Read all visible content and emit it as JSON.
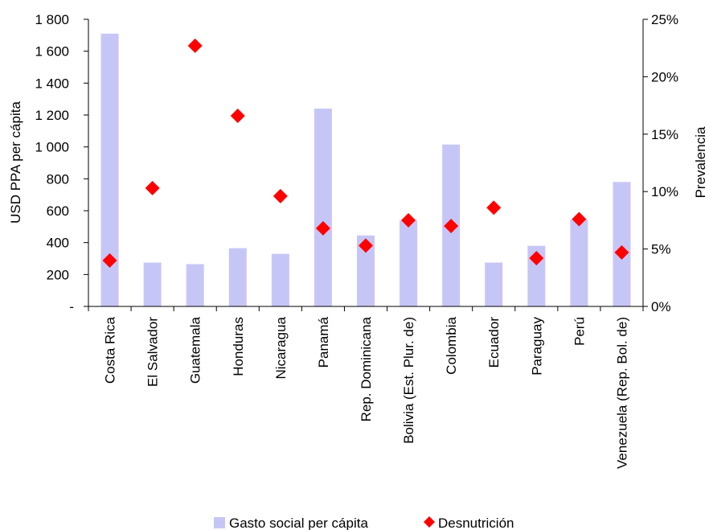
{
  "chart_data": {
    "type": "bar",
    "categories": [
      "Costa Rica",
      "El Salvador",
      "Guatemala",
      "Honduras",
      "Nicaragua",
      "Panamá",
      "Rep. Dominicana",
      "Bolivia (Est. Plur. de)",
      "Colombia",
      "Ecuador",
      "Paraguay",
      "Perú",
      "Venezuela (Rep. Bol. de)"
    ],
    "ylabel": "USD PPA per cápita",
    "y2label": "Prevalencia",
    "ylim": [
      0,
      1800
    ],
    "y2lim": [
      0,
      0.25
    ],
    "yticks": [
      {
        "value": 0,
        "label": "-"
      },
      {
        "value": 200,
        "label": "200"
      },
      {
        "value": 400,
        "label": "400"
      },
      {
        "value": 600,
        "label": "600"
      },
      {
        "value": 800,
        "label": "800"
      },
      {
        "value": 1000,
        "label": "1 000"
      },
      {
        "value": 1200,
        "label": "1 200"
      },
      {
        "value": 1400,
        "label": "1 400"
      },
      {
        "value": 1600,
        "label": "1 600"
      },
      {
        "value": 1800,
        "label": "1 800"
      }
    ],
    "y2ticks": [
      {
        "value": 0,
        "label": "0%"
      },
      {
        "value": 0.05,
        "label": "5%"
      },
      {
        "value": 0.1,
        "label": "10%"
      },
      {
        "value": 0.15,
        "label": "15%"
      },
      {
        "value": 0.2,
        "label": "20%"
      },
      {
        "value": 0.25,
        "label": "25%"
      }
    ],
    "series": [
      {
        "name": "Gasto social per cápita",
        "type": "bar",
        "axis": "left",
        "color": "#c6c6f6",
        "values": [
          1710,
          275,
          265,
          365,
          330,
          1240,
          445,
          540,
          1015,
          275,
          380,
          545,
          780
        ]
      },
      {
        "name": "Desnutrición",
        "type": "scatter",
        "axis": "right",
        "color": "#ff0000",
        "marker": "diamond",
        "values": [
          0.04,
          0.103,
          0.227,
          0.166,
          0.096,
          0.068,
          0.053,
          0.075,
          0.07,
          0.086,
          0.042,
          0.076,
          0.047
        ]
      }
    ],
    "legend": "bottom",
    "grid": false
  }
}
